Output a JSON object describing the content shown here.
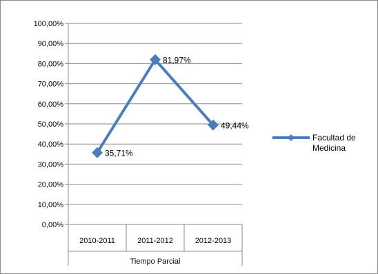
{
  "chart_data": {
    "type": "line",
    "categories": [
      "2010-2011",
      "2011-2012",
      "2012-2013"
    ],
    "group_label": "Tiempo Parcial",
    "series": [
      {
        "name": "Facultad de Medicina",
        "values": [
          35.71,
          81.97,
          49.44
        ],
        "labels": [
          "35,71%",
          "81,97%",
          "49,44%"
        ],
        "color": "#4a7ebb"
      }
    ],
    "legend_lines": [
      "Facultad de",
      "Medicina"
    ],
    "y_ticks": [
      "0,00%",
      "10,00%",
      "20,00%",
      "30,00%",
      "40,00%",
      "50,00%",
      "60,00%",
      "70,00%",
      "80,00%",
      "90,00%",
      "100,00%"
    ],
    "ylim": [
      0,
      100
    ],
    "grid": true,
    "legend_position": "right",
    "marker": "diamond"
  }
}
